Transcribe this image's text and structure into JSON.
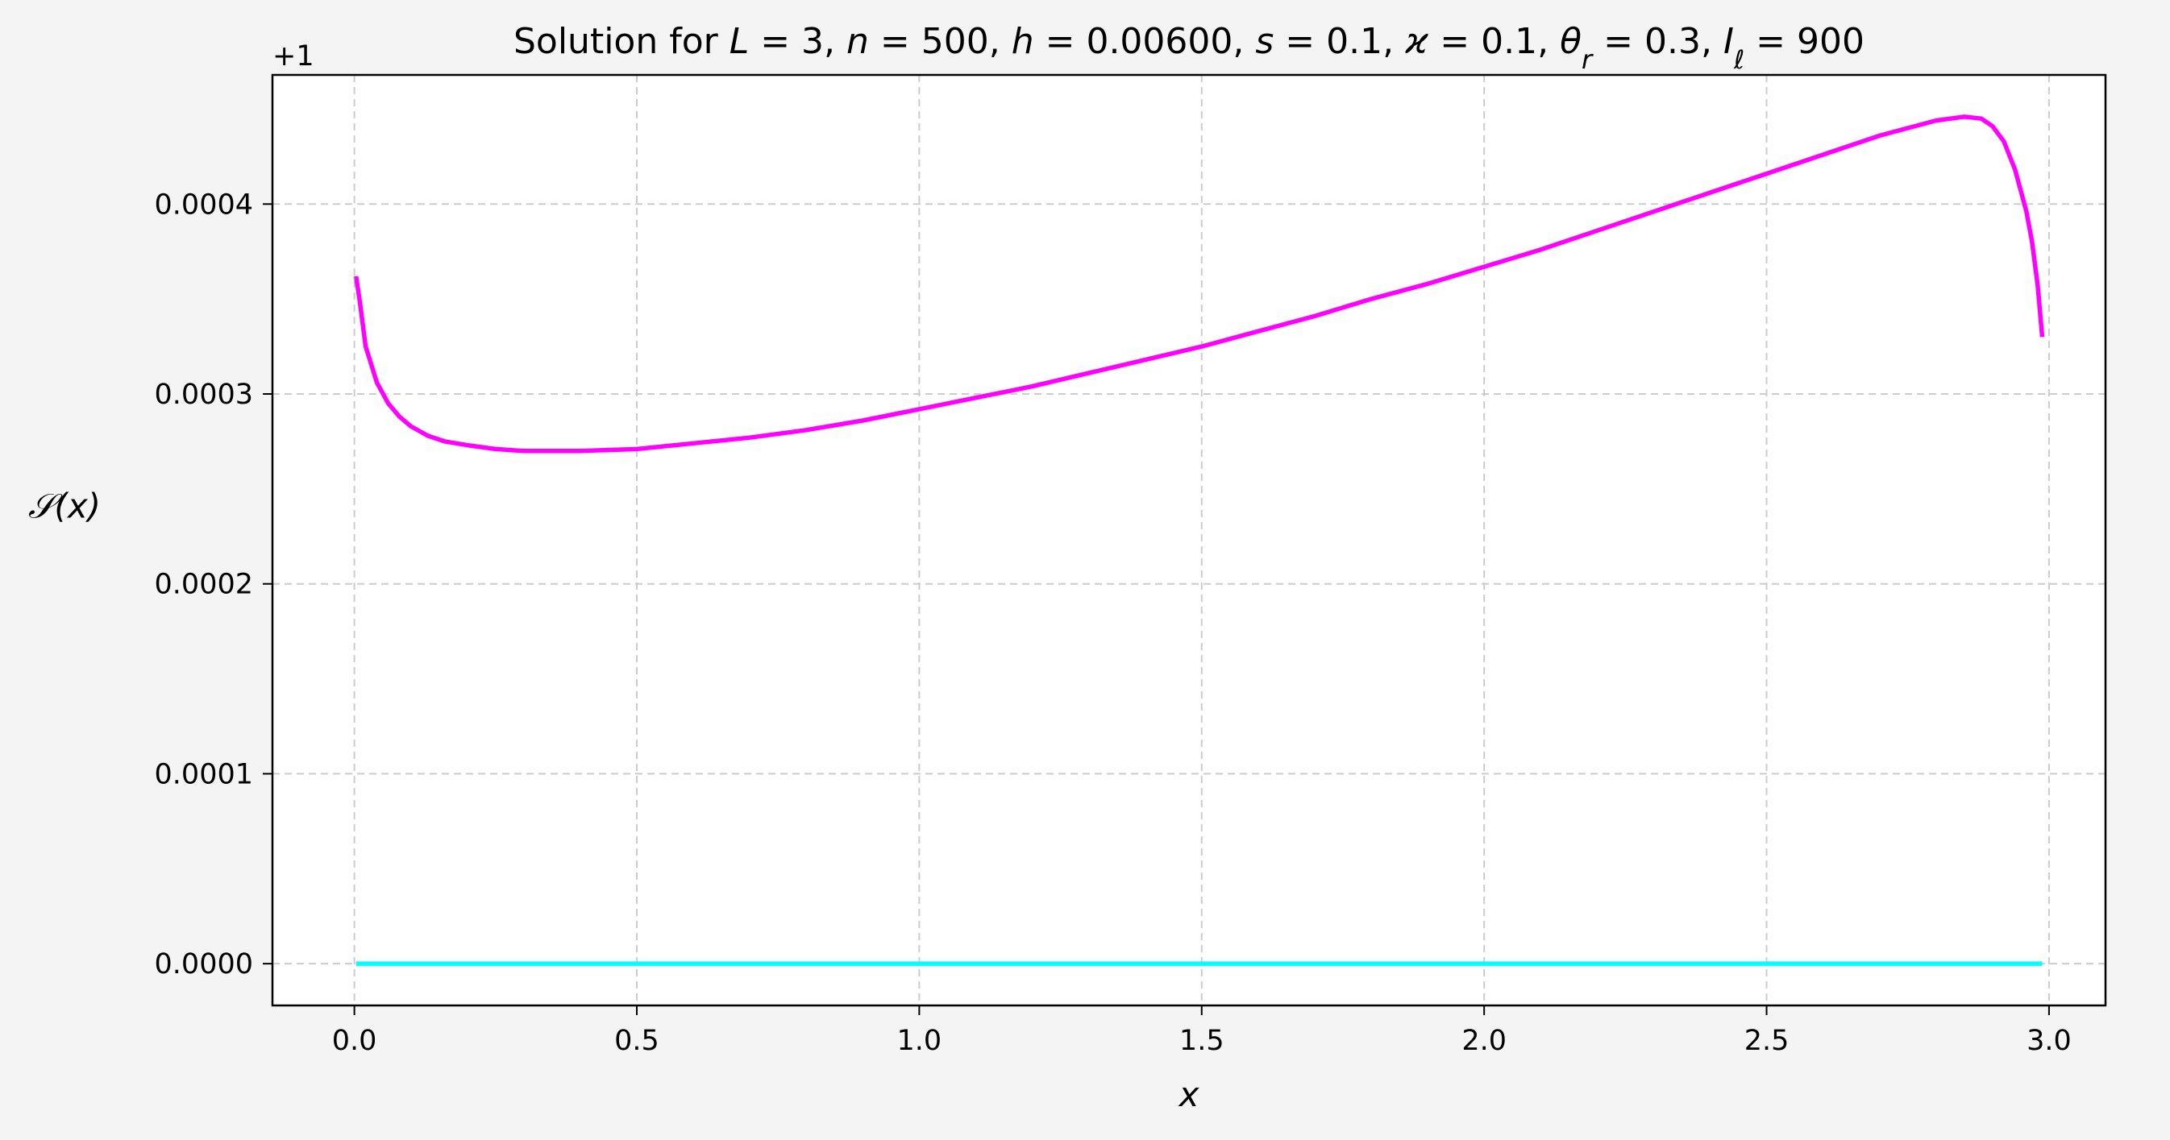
{
  "chart_data": {
    "type": "line",
    "title": {
      "prefix": "Solution for ",
      "params": [
        {
          "sym": "L",
          "val": "3"
        },
        {
          "sym": "n",
          "val": "500"
        },
        {
          "sym": "h",
          "val": "0.00600"
        },
        {
          "sym": "s",
          "val": "0.1"
        },
        {
          "sym": "ϰ",
          "val": "0.1"
        },
        {
          "sym": "θ",
          "sub": "r",
          "val": "0.3"
        },
        {
          "sym": "I",
          "sub": "ℓ",
          "val": "900"
        }
      ]
    },
    "xlabel": "x",
    "ylabel": "𝒮(x)",
    "y_offset_label": "+1",
    "xlim": [
      -0.145,
      3.1
    ],
    "ylim": [
      -2.2e-05,
      0.000468
    ],
    "x_ticks": [
      0.0,
      0.5,
      1.0,
      1.5,
      2.0,
      2.5,
      3.0
    ],
    "x_tick_labels": [
      "0.0",
      "0.5",
      "1.0",
      "1.5",
      "2.0",
      "2.5",
      "3.0"
    ],
    "y_ticks": [
      0.0,
      0.0001,
      0.0002,
      0.0003,
      0.0004
    ],
    "y_tick_labels": [
      "0.0000",
      "0.0001",
      "0.0002",
      "0.0003",
      "0.0004"
    ],
    "grid": true,
    "legend": "none",
    "series": [
      {
        "color": "#ff00ff",
        "x": [
          0.003,
          0.01,
          0.02,
          0.04,
          0.06,
          0.08,
          0.1,
          0.13,
          0.16,
          0.2,
          0.25,
          0.3,
          0.35,
          0.4,
          0.5,
          0.6,
          0.7,
          0.8,
          0.9,
          1.0,
          1.1,
          1.2,
          1.3,
          1.4,
          1.5,
          1.6,
          1.7,
          1.8,
          1.9,
          2.0,
          2.1,
          2.2,
          2.3,
          2.4,
          2.5,
          2.6,
          2.7,
          2.75,
          2.8,
          2.85,
          2.88,
          2.9,
          2.92,
          2.94,
          2.96,
          2.97,
          2.98,
          2.988
        ],
        "y": [
          0.000362,
          0.000348,
          0.000325,
          0.000306,
          0.000295,
          0.000288,
          0.000283,
          0.000278,
          0.000275,
          0.000273,
          0.000271,
          0.00027,
          0.00027,
          0.00027,
          0.000271,
          0.000274,
          0.000277,
          0.000281,
          0.000286,
          0.000292,
          0.000298,
          0.000304,
          0.000311,
          0.000318,
          0.000325,
          0.000333,
          0.000341,
          0.00035,
          0.000358,
          0.000367,
          0.000376,
          0.000386,
          0.000396,
          0.000406,
          0.000416,
          0.000426,
          0.000436,
          0.00044,
          0.000444,
          0.000446,
          0.000445,
          0.000441,
          0.000433,
          0.000418,
          0.000396,
          0.00038,
          0.000357,
          0.00033
        ]
      },
      {
        "color": "#00ffff",
        "x": [
          0.003,
          2.988
        ],
        "y": [
          0.0,
          0.0
        ]
      }
    ]
  }
}
